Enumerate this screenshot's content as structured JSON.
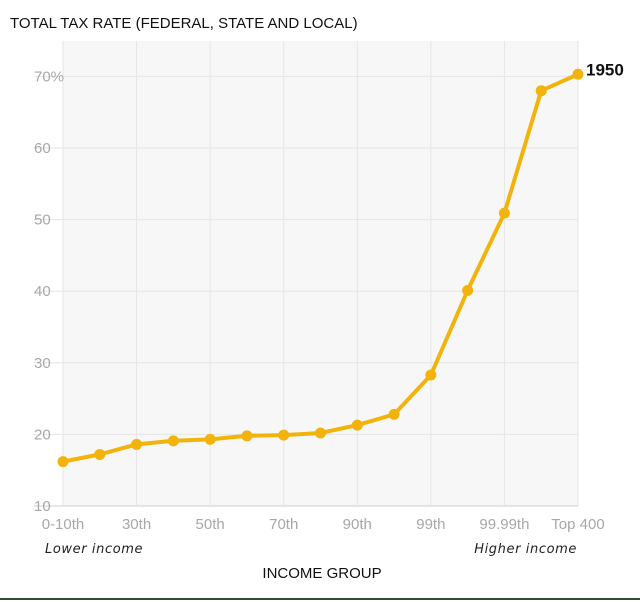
{
  "chart_data": {
    "type": "line",
    "title": "TOTAL TAX RATE (FEDERAL, STATE AND LOCAL)",
    "xlabel": "INCOME GROUP",
    "ylabel": "",
    "ylim": [
      10,
      75
    ],
    "yticks": [
      {
        "value": 10,
        "label": "10"
      },
      {
        "value": 20,
        "label": "20"
      },
      {
        "value": 30,
        "label": "30"
      },
      {
        "value": 40,
        "label": "40"
      },
      {
        "value": 50,
        "label": "50"
      },
      {
        "value": 60,
        "label": "60"
      },
      {
        "value": 70,
        "label": "70%"
      }
    ],
    "x_tick_labels": [
      {
        "index": 0,
        "label": "0-10th"
      },
      {
        "index": 2,
        "label": "30th"
      },
      {
        "index": 4,
        "label": "50th"
      },
      {
        "index": 6,
        "label": "70th"
      },
      {
        "index": 8,
        "label": "90th"
      },
      {
        "index": 10,
        "label": "99th"
      },
      {
        "index": 12,
        "label": "99.99th"
      },
      {
        "index": 14,
        "label": "Top 400"
      }
    ],
    "x_notes": {
      "low": "Lower income",
      "high": "Higher income"
    },
    "grid": true,
    "series": [
      {
        "name": "1950",
        "color": "#f2b40c",
        "values": [
          16.2,
          17.2,
          18.6,
          19.1,
          19.3,
          19.8,
          19.9,
          20.2,
          21.3,
          22.8,
          28.3,
          40.1,
          50.9,
          68.0,
          70.3
        ]
      }
    ]
  }
}
